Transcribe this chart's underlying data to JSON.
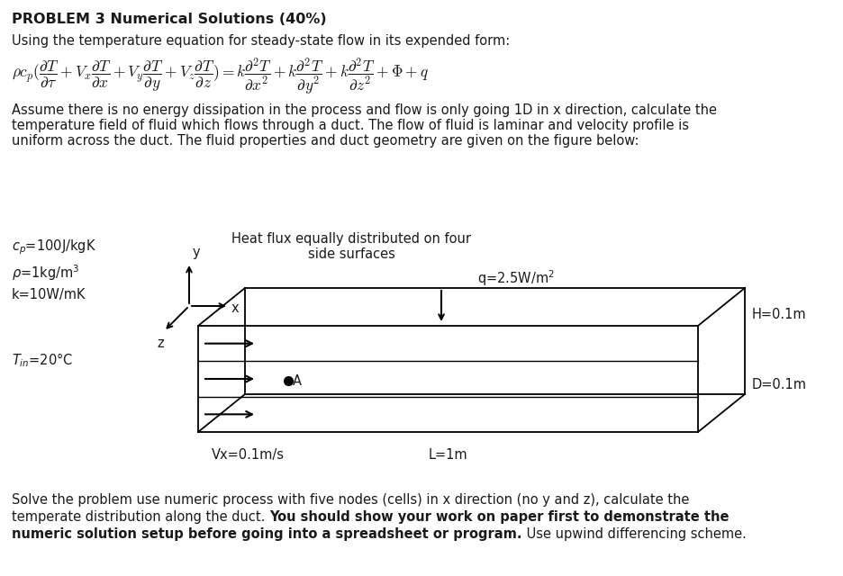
{
  "title": "PROBLEM 3 Numerical Solutions (40%)",
  "line1": "Using the temperature equation for steady-state flow in its expended form:",
  "equation": "$\\rho c_p(\\dfrac{\\partial T}{\\partial \\tau}+V_x\\dfrac{\\partial T}{\\partial x}+V_y\\dfrac{\\partial T}{\\partial y}+V_z\\dfrac{\\partial T}{\\partial z})=k\\dfrac{\\partial^2 T}{\\partial x^2}+k\\dfrac{\\partial^2 T}{\\partial y^2}+k\\dfrac{\\partial^2 T}{\\partial z^2}+\\Phi+q$",
  "para1_l1": "Assume there is no energy dissipation in the process and flow is only going 1D in x direction, calculate the",
  "para1_l2": "temperature field of fluid which flows through a duct. The flow of fluid is laminar and velocity profile is",
  "para1_l3": "uniform across the duct. The fluid properties and duct geometry are given on the figure below:",
  "cp_label": "$c_p$=100J/kgK",
  "rho_label": "$\\rho$=1kg/m$^3$",
  "k_label": "k=10W/mK",
  "Tin_label": "$T_{in}$=20°C",
  "heat_label1": "Heat flux equally distributed on four",
  "heat_label2": "side surfaces",
  "q_label": "q=2.5W/m$^2$",
  "Vx_label": "Vx=0.1m/s",
  "L_label": "L=1m",
  "H_label": "H=0.1m",
  "D_label": "D=0.1m",
  "x_label": "x",
  "y_label": "y",
  "z_label": "z",
  "A_label": "A",
  "p2_l1": "Solve the problem use numeric process with five nodes (cells) in x direction (no y and z), calculate the",
  "p2_l2n": "temperate distribution along the duct. ",
  "p2_l2b": "You should show your work on paper first to demonstrate the",
  "p2_l3b": "numeric solution setup before going into a spreadsheet or program.",
  "p2_l3n": " Use upwind differencing scheme.",
  "bg_color": "#ffffff",
  "text_color": "#1a1a1a",
  "fs_title": 11.5,
  "fs_body": 10.5,
  "fs_eq": 12.5
}
